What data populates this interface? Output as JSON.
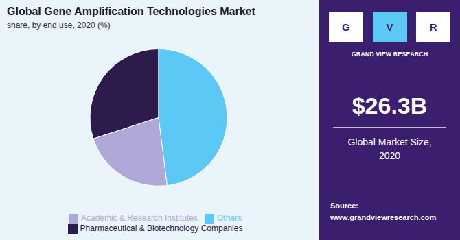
{
  "chart_data": {
    "type": "pie",
    "title": "Global Gene Amplification Technologies Market",
    "subtitle": "share, by end use, 2020 (%)",
    "categories": [
      "Pharmaceutical & Biotechnology Companies",
      "Academic & Research Institutes",
      "Others"
    ],
    "values": [
      30,
      22,
      48
    ],
    "colors": [
      "#2d1b4e",
      "#b0a8d8",
      "#5bc8f5"
    ],
    "legend": "bottom",
    "annotations": [
      "G",
      "V",
      "R",
      "GRAND VIEW RESEARCH",
      "$26.3B",
      "Global Market Size,\n2020",
      "Source:\nwww.grandviewresearch.com"
    ]
  }
}
